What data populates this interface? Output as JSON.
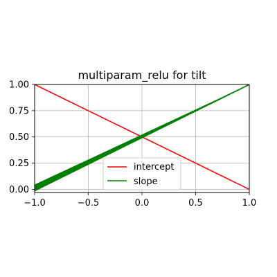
{
  "chart_data": {
    "type": "line",
    "title": "multiparam_relu for tilt",
    "xlabel": "",
    "ylabel": "",
    "xlim": [
      -1.0,
      1.0
    ],
    "ylim": [
      -0.03,
      1.0
    ],
    "x_ticks": [
      -1.0,
      -0.5,
      0.0,
      0.5,
      1.0
    ],
    "x_tick_labels": [
      "−1.0",
      "−0.5",
      "0.0",
      "0.5",
      "1.0"
    ],
    "y_ticks": [
      0.0,
      0.25,
      0.5,
      0.75,
      1.0
    ],
    "y_tick_labels": [
      "0.00",
      "0.25",
      "0.50",
      "0.75",
      "1.00"
    ],
    "grid": true,
    "legend_position": "lower-center",
    "series": [
      {
        "name": "intercept",
        "color": "#ff0000",
        "x": [
          -1.0,
          1.0
        ],
        "y": [
          1.0,
          0.0
        ]
      },
      {
        "name": "slope",
        "color": "#008000",
        "x": [
          -1.0,
          1.0
        ],
        "y": [
          0.0,
          1.0
        ]
      }
    ]
  }
}
